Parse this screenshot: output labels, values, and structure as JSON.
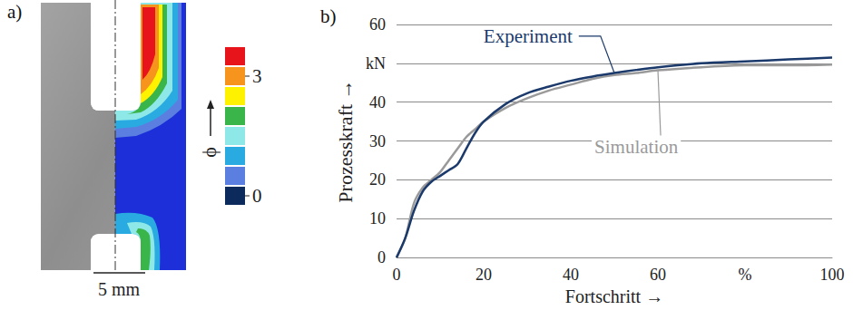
{
  "figure_a": {
    "panel_label": "a)",
    "colorbar": {
      "title": "ϕ",
      "levels": [
        0,
        0.5,
        1,
        1.5,
        2,
        2.5,
        3,
        3.5
      ],
      "colors": [
        "#0d2a5c",
        "#5b7fe0",
        "#29abe2",
        "#8fe8e8",
        "#39b54a",
        "#fff200",
        "#f7941d",
        "#e8141c"
      ],
      "ticks": [
        0,
        3
      ]
    },
    "scale_bar": "5 mm"
  },
  "chart_data": {
    "type": "line",
    "panel_label": "b)",
    "x_label": "Fortschritt →",
    "y_label": "Prozesskraft →",
    "x": [
      0,
      2,
      4,
      6,
      8,
      10,
      12,
      14,
      16,
      18,
      20,
      25,
      30,
      35,
      40,
      45,
      50,
      55,
      60,
      70,
      80,
      90,
      100
    ],
    "series": [
      {
        "name": "Experiment",
        "color": "#1b3a6b",
        "values": [
          0,
          5,
          12,
          17,
          19.5,
          21,
          22.5,
          24,
          28,
          32,
          35,
          39.5,
          42.3,
          44,
          45.5,
          46.6,
          47.5,
          48.3,
          49,
          50,
          50.5,
          51,
          51.5
        ]
      },
      {
        "name": "Simulation",
        "color": "#9a9a9a",
        "values": [
          0,
          5,
          14,
          18,
          20,
          22,
          25,
          28,
          31,
          33,
          35,
          38.5,
          41,
          43,
          44.5,
          46,
          47,
          47.5,
          48.2,
          49,
          49.5,
          49.5,
          49.7
        ]
      }
    ],
    "xlim": [
      0,
      100
    ],
    "xticks": [
      0,
      20,
      40,
      60,
      {
        "value": 80,
        "label": "%"
      },
      100
    ],
    "ylim": [
      0,
      60
    ],
    "yticks": [
      0,
      10,
      20,
      30,
      40,
      {
        "value": 50,
        "label": "kN"
      },
      60
    ],
    "grid": true
  }
}
